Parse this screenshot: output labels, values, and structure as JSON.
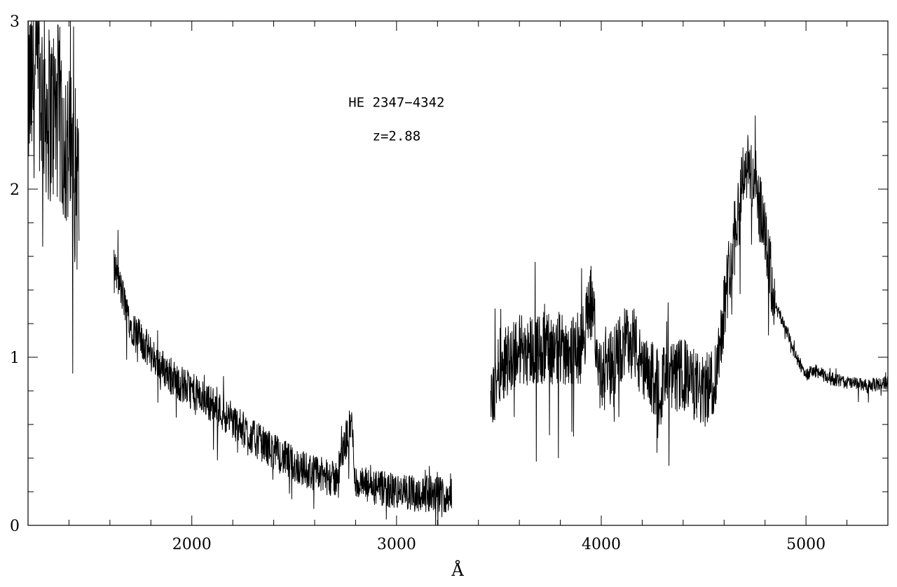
{
  "chart_data": {
    "type": "line",
    "title": "",
    "xlabel": "Å",
    "ylabel": "",
    "xlim": [
      1200,
      5400
    ],
    "ylim": [
      0,
      3
    ],
    "grid": false,
    "x_ticks": [
      2000,
      3000,
      4000,
      5000
    ],
    "x_tick_labels": [
      "2000",
      "3000",
      "4000",
      "5000"
    ],
    "y_ticks": [
      0,
      1,
      2,
      3
    ],
    "y_tick_labels": [
      "0",
      "1",
      "2",
      "3"
    ],
    "annotations": [
      {
        "text": "HE 2347−4342",
        "x": 3000,
        "y": 2.49
      },
      {
        "text": "z=2.88",
        "x": 3000,
        "y": 2.29
      }
    ],
    "series": [
      {
        "segments": [
          {
            "x_range": [
              1200,
              1450
            ],
            "trend": [
              [
                1200,
                2.55
              ],
              [
                1250,
                2.65
              ],
              [
                1300,
                2.45
              ],
              [
                1350,
                2.45
              ],
              [
                1400,
                2.2
              ],
              [
                1450,
                2.0
              ]
            ],
            "noise": 0.55
          },
          {
            "x_range": [
              1620,
              3270
            ],
            "trend": [
              [
                1620,
                1.55
              ],
              [
                1700,
                1.2
              ],
              [
                1800,
                1.02
              ],
              [
                1900,
                0.88
              ],
              [
                2000,
                0.8
              ],
              [
                2100,
                0.72
              ],
              [
                2200,
                0.62
              ],
              [
                2300,
                0.52
              ],
              [
                2400,
                0.44
              ],
              [
                2500,
                0.36
              ],
              [
                2600,
                0.31
              ],
              [
                2700,
                0.27
              ],
              [
                2780,
                0.62
              ],
              [
                2800,
                0.25
              ],
              [
                2900,
                0.22
              ],
              [
                3000,
                0.2
              ],
              [
                3100,
                0.19
              ],
              [
                3270,
                0.18
              ]
            ],
            "noise": 0.11
          },
          {
            "x_range": [
              3460,
              4850
            ],
            "trend": [
              [
                3460,
                0.7
              ],
              [
                3500,
                0.95
              ],
              [
                3600,
                1.05
              ],
              [
                3700,
                1.05
              ],
              [
                3800,
                1.05
              ],
              [
                3900,
                1.05
              ],
              [
                3950,
                1.35
              ],
              [
                4000,
                0.85
              ],
              [
                4100,
                1.05
              ],
              [
                4150,
                1.15
              ],
              [
                4200,
                0.9
              ],
              [
                4300,
                0.85
              ],
              [
                4400,
                0.9
              ],
              [
                4500,
                0.78
              ],
              [
                4560,
                0.9
              ],
              [
                4600,
                1.3
              ],
              [
                4650,
                1.75
              ],
              [
                4700,
                2.15
              ],
              [
                4750,
                2.05
              ],
              [
                4800,
                1.7
              ],
              [
                4850,
                1.3
              ]
            ],
            "noise": 0.22
          },
          {
            "x_range": [
              4850,
              5400
            ],
            "trend": [
              [
                4850,
                1.3
              ],
              [
                4900,
                1.18
              ],
              [
                4950,
                1.0
              ],
              [
                5000,
                0.9
              ],
              [
                5050,
                0.92
              ],
              [
                5100,
                0.88
              ],
              [
                5200,
                0.85
              ],
              [
                5300,
                0.83
              ],
              [
                5400,
                0.85
              ]
            ],
            "noise": 0.04
          }
        ]
      }
    ]
  }
}
